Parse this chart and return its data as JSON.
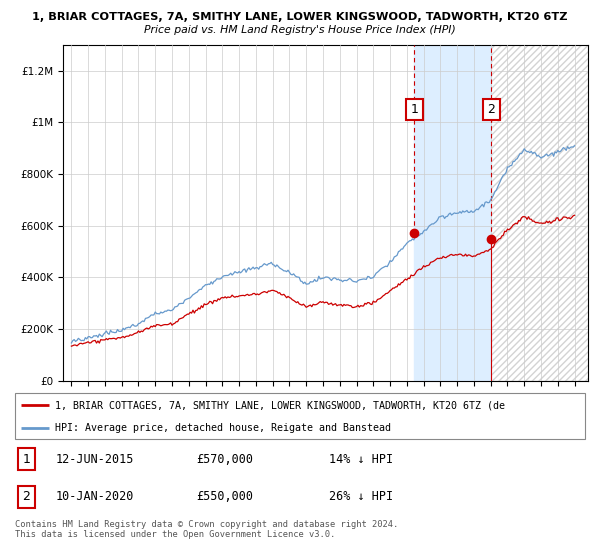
{
  "title": "1, BRIAR COTTAGES, 7A, SMITHY LANE, LOWER KINGSWOOD, TADWORTH, KT20 6TZ",
  "subtitle": "Price paid vs. HM Land Registry's House Price Index (HPI)",
  "sale1": {
    "date": "12-JUN-2015",
    "price": 570000,
    "pct": "14%",
    "direction": "↓"
  },
  "sale2": {
    "date": "10-JAN-2020",
    "price": 550000,
    "pct": "26%",
    "direction": "↓"
  },
  "legend_property": "1, BRIAR COTTAGES, 7A, SMITHY LANE, LOWER KINGSWOOD, TADWORTH, KT20 6TZ (de",
  "legend_hpi": "HPI: Average price, detached house, Reigate and Banstead",
  "footnote": "Contains HM Land Registry data © Crown copyright and database right 2024.\nThis data is licensed under the Open Government Licence v3.0.",
  "property_color": "#cc0000",
  "hpi_color": "#6699cc",
  "shade_color": "#ddeeff",
  "marker1_year": 2015.45,
  "marker2_year": 2020.03,
  "sale1_price": 570000,
  "sale2_price": 550000,
  "ylim": [
    0,
    1300000
  ],
  "xlim_start": 1994.5,
  "xlim_end": 2025.8,
  "yticks": [
    0,
    200000,
    400000,
    600000,
    800000,
    1000000,
    1200000
  ],
  "ytick_labels": [
    "£0",
    "£200K",
    "£400K",
    "£600K",
    "£800K",
    "£1M",
    "£1.2M"
  ],
  "xticks": [
    1995,
    1996,
    1997,
    1998,
    1999,
    2000,
    2001,
    2002,
    2003,
    2004,
    2005,
    2006,
    2007,
    2008,
    2009,
    2010,
    2011,
    2012,
    2013,
    2014,
    2015,
    2016,
    2017,
    2018,
    2019,
    2020,
    2021,
    2022,
    2023,
    2024,
    2025
  ]
}
